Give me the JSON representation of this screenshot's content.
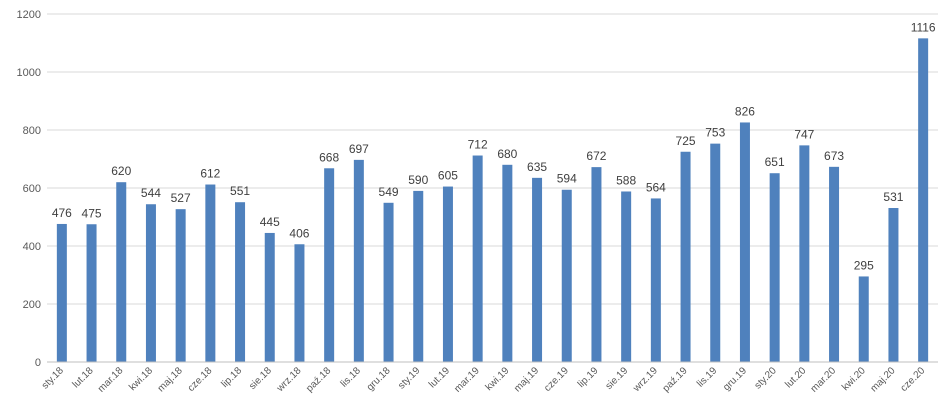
{
  "chart_data": {
    "type": "bar",
    "title": "",
    "xlabel": "",
    "ylabel": "",
    "ylim": [
      0,
      1200
    ],
    "yticks": [
      0,
      200,
      400,
      600,
      800,
      1000,
      1200
    ],
    "grid": true,
    "color": "#4f81bd",
    "categories": [
      "sty.18",
      "lut.18",
      "mar.18",
      "kwi.18",
      "maj.18",
      "cze.18",
      "lip.18",
      "sie.18",
      "wrz.18",
      "paź.18",
      "lis.18",
      "gru.18",
      "sty.19",
      "lut.19",
      "mar.19",
      "kwi.19",
      "maj.19",
      "cze.19",
      "lip.19",
      "sie.19",
      "wrz.19",
      "paź.19",
      "lis.19",
      "gru.19",
      "sty.20",
      "lut.20",
      "mar.20",
      "kwi.20",
      "maj.20",
      "cze.20"
    ],
    "values": [
      476,
      475,
      620,
      544,
      527,
      612,
      551,
      445,
      406,
      668,
      697,
      549,
      590,
      605,
      712,
      680,
      635,
      594,
      672,
      588,
      564,
      725,
      753,
      826,
      651,
      747,
      673,
      295,
      531,
      1116
    ]
  }
}
